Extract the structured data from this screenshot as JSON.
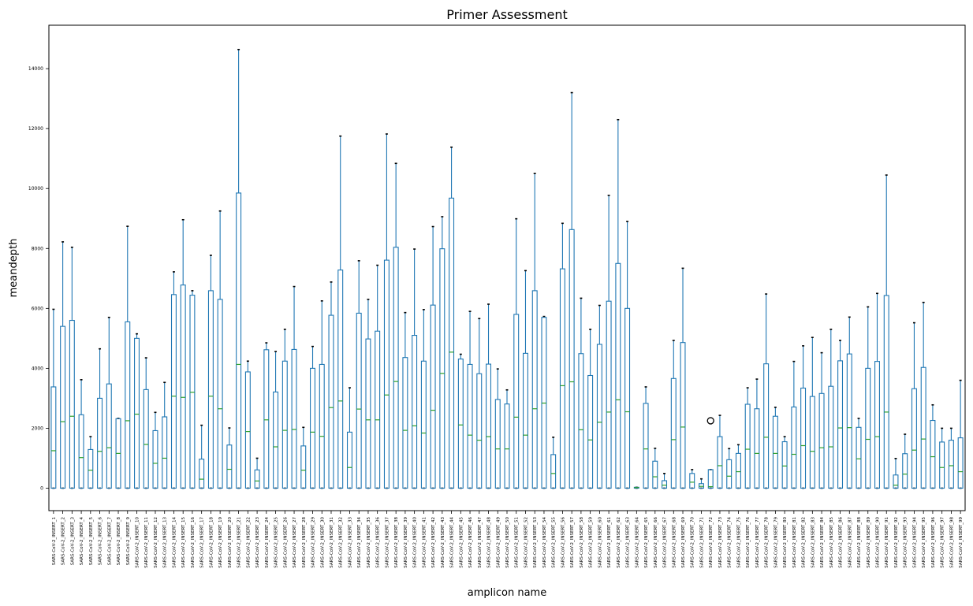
{
  "chart_data": {
    "type": "boxplot",
    "title": "Primer Assessment",
    "xlabel": "amplicon name",
    "ylabel": "meandepth",
    "ylim": [
      -750,
      15450
    ],
    "yticks": [
      0,
      2000,
      4000,
      6000,
      8000,
      10000,
      12000,
      14000
    ],
    "grid": false,
    "categories": [
      "SARS-CoV-2_INSERT_1",
      "SARS-CoV-2_INSERT_2",
      "SARS-CoV-2_INSERT_3",
      "SARS-CoV-2_INSERT_4",
      "SARS-CoV-2_INSERT_5",
      "SARS-CoV-2_INSERT_6",
      "SARS-CoV-2_INSERT_7",
      "SARS-CoV-2_INSERT_8",
      "SARS-CoV-2_INSERT_9",
      "SARS-CoV-2_INSERT_10",
      "SARS-CoV-2_INSERT_11",
      "SARS-CoV-2_INSERT_12",
      "SARS-CoV-2_INSERT_13",
      "SARS-CoV-2_INSERT_14",
      "SARS-CoV-2_INSERT_15",
      "SARS-CoV-2_INSERT_16",
      "SARS-CoV-2_INSERT_17",
      "SARS-CoV-2_INSERT_18",
      "SARS-CoV-2_INSERT_19",
      "SARS-CoV-2_INSERT_20",
      "SARS-CoV-2_INSERT_21",
      "SARS-CoV-2_INSERT_22",
      "SARS-CoV-2_INSERT_23",
      "SARS-CoV-2_INSERT_24",
      "SARS-CoV-2_INSERT_25",
      "SARS-CoV-2_INSERT_26",
      "SARS-CoV-2_INSERT_27",
      "SARS-CoV-2_INSERT_28",
      "SARS-CoV-2_INSERT_29",
      "SARS-CoV-2_INSERT_30",
      "SARS-CoV-2_INSERT_31",
      "SARS-CoV-2_INSERT_32",
      "SARS-CoV-2_INSERT_33",
      "SARS-CoV-2_INSERT_34",
      "SARS-CoV-2_INSERT_35",
      "SARS-CoV-2_INSERT_36",
      "SARS-CoV-2_INSERT_37",
      "SARS-CoV-2_INSERT_38",
      "SARS-CoV-2_INSERT_39",
      "SARS-CoV-2_INSERT_40",
      "SARS-CoV-2_INSERT_41",
      "SARS-CoV-2_INSERT_42",
      "SARS-CoV-2_INSERT_43",
      "SARS-CoV-2_INSERT_44",
      "SARS-CoV-2_INSERT_45",
      "SARS-CoV-2_INSERT_46",
      "SARS-CoV-2_INSERT_47",
      "SARS-CoV-2_INSERT_48",
      "SARS-CoV-2_INSERT_49",
      "SARS-CoV-2_INSERT_50",
      "SARS-CoV-2_INSERT_51",
      "SARS-CoV-2_INSERT_52",
      "SARS-CoV-2_INSERT_53",
      "SARS-CoV-2_INSERT_54",
      "SARS-CoV-2_INSERT_55",
      "SARS-CoV-2_INSERT_56",
      "SARS-CoV-2_INSERT_57",
      "SARS-CoV-2_INSERT_58",
      "SARS-CoV-2_INSERT_59",
      "SARS-CoV-2_INSERT_60",
      "SARS-CoV-2_INSERT_61",
      "SARS-CoV-2_INSERT_62",
      "SARS-CoV-2_INSERT_63",
      "SARS-CoV-2_INSERT_64",
      "SARS-CoV-2_INSERT_65",
      "SARS-CoV-2_INSERT_66",
      "SARS-CoV-2_INSERT_67",
      "SARS-CoV-2_INSERT_68",
      "SARS-CoV-2_INSERT_69",
      "SARS-CoV-2_INSERT_70",
      "SARS-CoV-2_INSERT_71",
      "SARS-CoV-2_INSERT_72",
      "SARS-CoV-2_INSERT_73",
      "SARS-CoV-2_INSERT_74",
      "SARS-CoV-2_INSERT_75",
      "SARS-CoV-2_INSERT_76",
      "SARS-CoV-2_INSERT_77",
      "SARS-CoV-2_INSERT_78",
      "SARS-CoV-2_INSERT_79",
      "SARS-CoV-2_INSERT_80",
      "SARS-CoV-2_INSERT_81",
      "SARS-CoV-2_INSERT_82",
      "SARS-CoV-2_INSERT_83",
      "SARS-CoV-2_INSERT_84",
      "SARS-CoV-2_INSERT_85",
      "SARS-CoV-2_INSERT_86",
      "SARS-CoV-2_INSERT_87",
      "SARS-CoV-2_INSERT_88",
      "SARS-CoV-2_INSERT_89",
      "SARS-CoV-2_INSERT_90",
      "SARS-CoV-2_INSERT_91",
      "SARS-CoV-2_INSERT_92",
      "SARS-CoV-2_INSERT_93",
      "SARS-CoV-2_INSERT_94",
      "SARS-CoV-2_INSERT_95",
      "SARS-CoV-2_INSERT_96",
      "SARS-CoV-2_INSERT_97",
      "SARS-CoV-2_INSERT_98",
      "SARS-CoV-2_INSERT_99"
    ],
    "q3": [
      3380,
      5400,
      5600,
      2450,
      1290,
      3000,
      3480,
      2320,
      5550,
      5000,
      3290,
      1920,
      2380,
      6460,
      6780,
      6440,
      970,
      6590,
      6300,
      1440,
      9850,
      3880,
      610,
      4620,
      3210,
      4240,
      4630,
      1410,
      4000,
      4130,
      5770,
      7280,
      1870,
      5840,
      4980,
      5240,
      7610,
      8040,
      4360,
      5100,
      4240,
      6110,
      7990,
      9680,
      4310,
      4130,
      3820,
      4140,
      2960,
      2810,
      5800,
      4500,
      6590,
      5700,
      1120,
      7320,
      8630,
      4490,
      3760,
      4800,
      6240,
      7500,
      6000,
      30,
      2830,
      900,
      250,
      3660,
      4860,
      490,
      150,
      620,
      1720,
      950,
      1160,
      2800,
      2650,
      4150,
      2400,
      1550,
      2710,
      3340,
      3060,
      3160,
      3400,
      4250,
      4480,
      2030,
      4000,
      4230,
      6430,
      440,
      1150,
      3320,
      4030,
      2260,
      1540,
      1600,
      1680
    ],
    "median": [
      1250,
      2220,
      2400,
      1020,
      600,
      1230,
      1350,
      1160,
      2250,
      2470,
      1460,
      830,
      1000,
      3070,
      3030,
      3200,
      300,
      3070,
      2650,
      630,
      4130,
      1890,
      240,
      2280,
      1380,
      1930,
      1960,
      600,
      1870,
      1730,
      2690,
      2910,
      690,
      2640,
      2280,
      2280,
      3110,
      3560,
      1930,
      2080,
      1840,
      2600,
      3830,
      4540,
      2110,
      1770,
      1600,
      1720,
      1310,
      1310,
      2370,
      1770,
      2650,
      2840,
      490,
      3420,
      3550,
      1950,
      1610,
      2200,
      2540,
      2950,
      2550,
      20,
      1310,
      380,
      100,
      1620,
      2040,
      200,
      60,
      50,
      750,
      400,
      550,
      1300,
      1160,
      1700,
      1160,
      740,
      1130,
      1420,
      1230,
      1350,
      1380,
      2010,
      2020,
      980,
      1630,
      1720,
      2540,
      100,
      470,
      1270,
      1640,
      1050,
      690,
      750,
      550
    ],
    "whisker_high": [
      5970,
      8220,
      8040,
      3620,
      1720,
      4650,
      5700,
      2330,
      8740,
      5150,
      4350,
      2530,
      3530,
      7220,
      8960,
      6590,
      2100,
      7770,
      9250,
      2010,
      14640,
      4240,
      1000,
      4850,
      4560,
      5300,
      6730,
      2030,
      4730,
      6250,
      6880,
      11750,
      3350,
      7590,
      6300,
      7440,
      11820,
      10840,
      5860,
      7980,
      5960,
      8730,
      9060,
      11380,
      4470,
      5900,
      5660,
      6140,
      3980,
      3280,
      8990,
      7260,
      10500,
      5730,
      1700,
      8840,
      13200,
      6340,
      5300,
      6100,
      9770,
      12300,
      8900,
      30,
      3380,
      1330,
      490,
      4930,
      7340,
      620,
      310,
      620,
      2430,
      1320,
      1450,
      3350,
      3640,
      6480,
      2700,
      1720,
      4230,
      4750,
      5030,
      4520,
      5300,
      4930,
      5710,
      2330,
      6050,
      6500,
      10450,
      990,
      1800,
      5520,
      6200,
      2780,
      2000,
      2000,
      3600
    ],
    "whisker_low": [
      0,
      0,
      0,
      0,
      0,
      0,
      0,
      0,
      0,
      0,
      0,
      0,
      0,
      0,
      0,
      0,
      0,
      0,
      0,
      0,
      0,
      0,
      0,
      0,
      0,
      0,
      0,
      0,
      0,
      0,
      0,
      0,
      0,
      0,
      0,
      0,
      0,
      0,
      0,
      0,
      0,
      0,
      0,
      0,
      0,
      0,
      0,
      0,
      0,
      0,
      0,
      0,
      0,
      0,
      0,
      0,
      0,
      0,
      0,
      0,
      0,
      0,
      0,
      0,
      0,
      0,
      0,
      0,
      0,
      0,
      0,
      0,
      0,
      0,
      0,
      0,
      0,
      0,
      0,
      0,
      0,
      0,
      0,
      0,
      0,
      0,
      0,
      0,
      0,
      0,
      0,
      0,
      0,
      0,
      0,
      0,
      0,
      0,
      0
    ],
    "q1": [
      0,
      0,
      0,
      0,
      0,
      0,
      0,
      0,
      0,
      0,
      0,
      0,
      0,
      0,
      0,
      0,
      0,
      0,
      0,
      0,
      0,
      0,
      0,
      0,
      0,
      0,
      0,
      0,
      0,
      0,
      0,
      0,
      0,
      0,
      0,
      0,
      0,
      0,
      0,
      0,
      0,
      0,
      0,
      0,
      0,
      0,
      0,
      0,
      0,
      0,
      0,
      0,
      0,
      0,
      0,
      0,
      0,
      0,
      0,
      0,
      0,
      0,
      0,
      0,
      0,
      0,
      0,
      0,
      0,
      0,
      0,
      0,
      0,
      0,
      0,
      0,
      0,
      0,
      0,
      0,
      0,
      0,
      0,
      0,
      0,
      0,
      0,
      0,
      0,
      0,
      0,
      0,
      0,
      0,
      0,
      0,
      0,
      0,
      0
    ],
    "fliers": [
      {
        "category": "SARS-CoV-2_INSERT_72",
        "value": 2250
      }
    ],
    "colors": {
      "box": "#1f77b4",
      "median": "#2ca02c",
      "cap": "#000000"
    }
  }
}
